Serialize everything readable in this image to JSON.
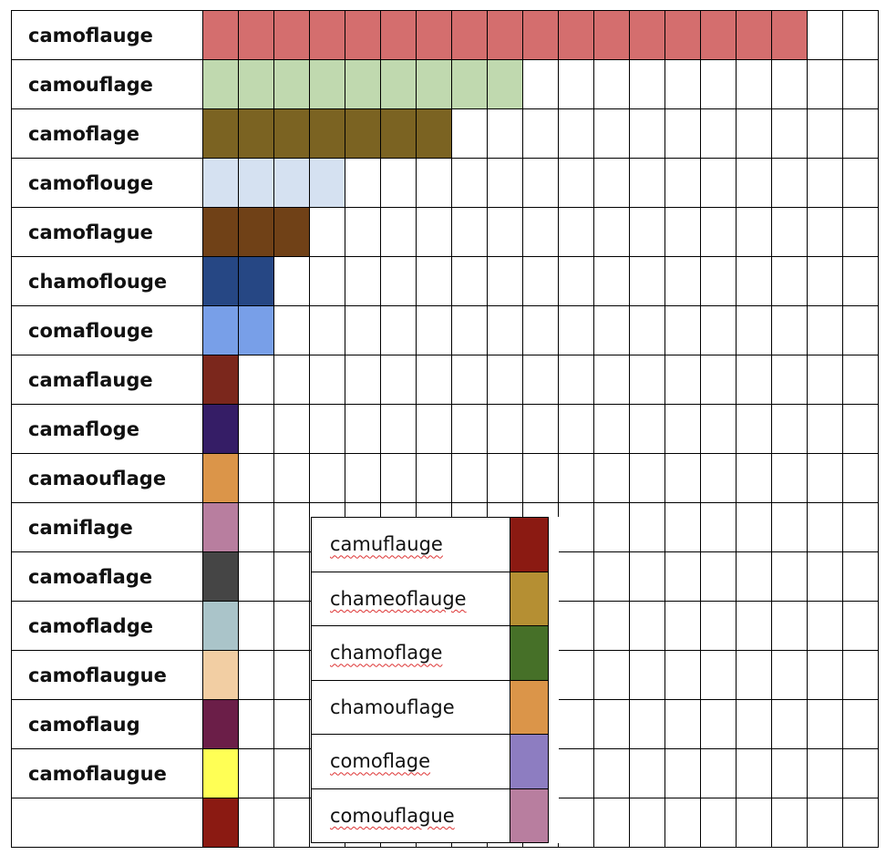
{
  "main_rows": [
    {
      "label": "camoflauge",
      "count": 17,
      "color": "#d46e6e"
    },
    {
      "label": "camouflage",
      "count": 9,
      "color": "#c0d9af"
    },
    {
      "label": "camoflage",
      "count": 7,
      "color": "#7b6322"
    },
    {
      "label": "camoflouge",
      "count": 4,
      "color": "#d5e1f1"
    },
    {
      "label": "camoflague",
      "count": 3,
      "color": "#704117"
    },
    {
      "label": "chamoflouge",
      "count": 2,
      "color": "#264784"
    },
    {
      "label": "comaflouge",
      "count": 2,
      "color": "#789fe8"
    },
    {
      "label": "camaflauge",
      "count": 1,
      "color": "#7b271c"
    },
    {
      "label": "camafloge",
      "count": 1,
      "color": "#351d66"
    },
    {
      "label": "camaouflage",
      "count": 1,
      "color": "#db9549"
    },
    {
      "label": "camiflage",
      "count": 1,
      "color": "#b87e9f"
    },
    {
      "label": "camoaflage",
      "count": 1,
      "color": "#454545"
    },
    {
      "label": "camofladge",
      "count": 1,
      "color": "#aac4c9"
    },
    {
      "label": "camoflaugue",
      "count": 1,
      "color": "#f2cea3"
    },
    {
      "label": "camoflaug",
      "count": 1,
      "color": "#6b1e48"
    },
    {
      "label": "camoflaugue",
      "count": 1,
      "color": "#ffff55"
    },
    {
      "label": "",
      "count": 1,
      "color": "#8b1a12"
    }
  ],
  "grid_columns": 19,
  "overlay_rows": [
    {
      "label": "camuflauge",
      "color": "#8b1a12",
      "spellcheck": true
    },
    {
      "label": "chameoflauge",
      "color": "#b58f33",
      "spellcheck": true
    },
    {
      "label": "chamoflage",
      "color": "#467028",
      "spellcheck": true
    },
    {
      "label": "chamouflage",
      "color": "#db9549",
      "spellcheck": false
    },
    {
      "label": "comoflage",
      "color": "#8d7dc1",
      "spellcheck": true
    },
    {
      "label": "comouflague",
      "color": "#b87e9f",
      "spellcheck": true
    }
  ]
}
